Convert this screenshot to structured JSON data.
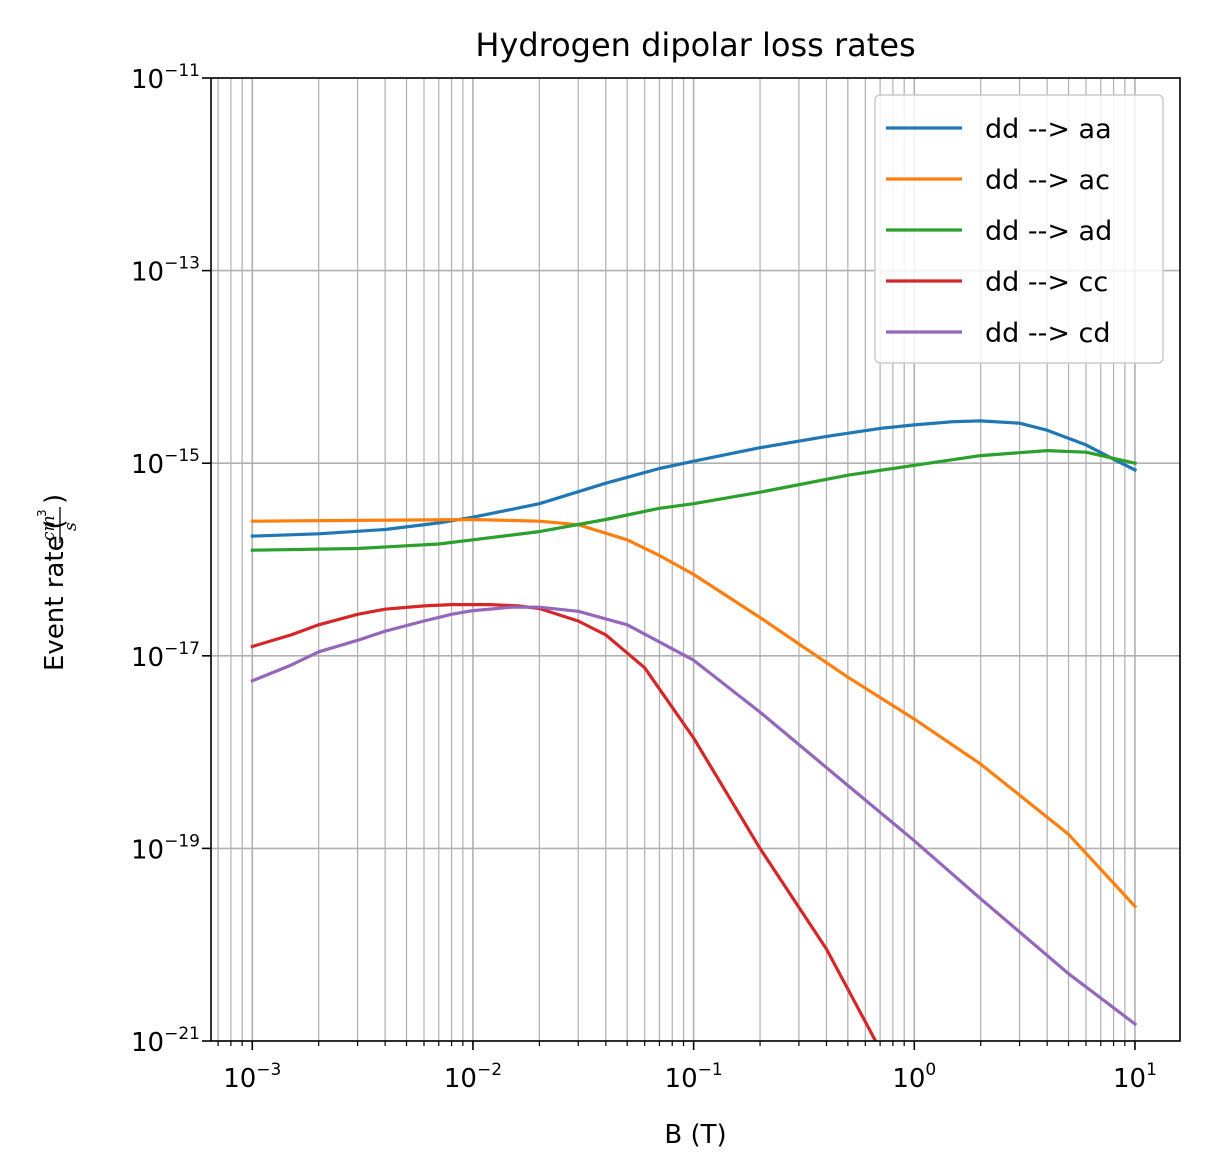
{
  "chart_data": {
    "type": "line",
    "title": "Hydrogen dipolar loss rates",
    "xlabel": "B (T)",
    "ylabel": "Event rate",
    "ylabel_unit_num": "cm",
    "ylabel_unit_exp": "3",
    "ylabel_unit_den": "s",
    "x_scale": "log",
    "y_scale": "log",
    "xlim": [
      0.00065,
      16
    ],
    "ylim": [
      1e-21,
      1e-11
    ],
    "x_ticks": [
      {
        "value": 0.001,
        "base": "10",
        "exp": "−3"
      },
      {
        "value": 0.01,
        "base": "10",
        "exp": "−2"
      },
      {
        "value": 0.1,
        "base": "10",
        "exp": "−1"
      },
      {
        "value": 1,
        "base": "10",
        "exp": "0"
      },
      {
        "value": 10,
        "base": "10",
        "exp": "1"
      }
    ],
    "y_ticks": [
      {
        "value": 1e-21,
        "base": "10",
        "exp": "−21"
      },
      {
        "value": 1e-19,
        "base": "10",
        "exp": "−19"
      },
      {
        "value": 1e-17,
        "base": "10",
        "exp": "−17"
      },
      {
        "value": 1e-15,
        "base": "10",
        "exp": "−15"
      },
      {
        "value": 1e-13,
        "base": "10",
        "exp": "−13"
      },
      {
        "value": 1e-11,
        "base": "10",
        "exp": "−11"
      }
    ],
    "grid": "both major and minor",
    "legend_position": "top-right",
    "series": [
      {
        "name": "dd --> aa",
        "color": "#1f77b4",
        "x": [
          0.001,
          0.002,
          0.004,
          0.007,
          0.01,
          0.02,
          0.04,
          0.07,
          0.1,
          0.2,
          0.4,
          0.7,
          1,
          1.5,
          2,
          3,
          4,
          6,
          8,
          10
        ],
        "y": [
          1.75e-16,
          1.85e-16,
          2.05e-16,
          2.4e-16,
          2.75e-16,
          3.8e-16,
          6.2e-16,
          8.8e-16,
          1.05e-15,
          1.45e-15,
          1.9e-15,
          2.3e-15,
          2.5e-15,
          2.7e-15,
          2.75e-15,
          2.6e-15,
          2.2e-15,
          1.55e-15,
          1.1e-15,
          8.5e-16
        ]
      },
      {
        "name": "dd --> ac",
        "color": "#ff7f0e",
        "x": [
          0.001,
          0.003,
          0.01,
          0.02,
          0.03,
          0.05,
          0.07,
          0.1,
          0.2,
          0.5,
          1,
          2,
          5,
          10
        ],
        "y": [
          2.5e-16,
          2.55e-16,
          2.6e-16,
          2.5e-16,
          2.3e-16,
          1.6e-16,
          1.1e-16,
          7e-17,
          2.5e-17,
          6e-18,
          2.2e-18,
          7.5e-19,
          1.4e-19,
          2.5e-20
        ]
      },
      {
        "name": "dd --> ad",
        "color": "#2ca02c",
        "x": [
          0.001,
          0.003,
          0.007,
          0.01,
          0.02,
          0.04,
          0.07,
          0.1,
          0.2,
          0.5,
          1,
          2,
          4,
          6,
          10
        ],
        "y": [
          1.25e-16,
          1.3e-16,
          1.45e-16,
          1.6e-16,
          1.95e-16,
          2.6e-16,
          3.4e-16,
          3.8e-16,
          5e-16,
          7.5e-16,
          9.5e-16,
          1.2e-15,
          1.35e-15,
          1.3e-15,
          1e-15
        ]
      },
      {
        "name": "dd --> cc",
        "color": "#d62728",
        "x": [
          0.001,
          0.0015,
          0.002,
          0.003,
          0.004,
          0.006,
          0.008,
          0.012,
          0.016,
          0.02,
          0.03,
          0.04,
          0.06,
          0.1,
          0.2,
          0.4,
          0.6676
        ],
        "y": [
          1.25e-17,
          1.65e-17,
          2.1e-17,
          2.7e-17,
          3.05e-17,
          3.3e-17,
          3.4e-17,
          3.4e-17,
          3.3e-17,
          3.1e-17,
          2.3e-17,
          1.65e-17,
          7.5e-18,
          1.4e-18,
          1e-19,
          9e-21,
          1e-21
        ]
      },
      {
        "name": "dd --> cd",
        "color": "#9467bd",
        "x": [
          0.001,
          0.0015,
          0.002,
          0.003,
          0.004,
          0.006,
          0.008,
          0.01,
          0.015,
          0.02,
          0.03,
          0.05,
          0.1,
          0.2,
          0.5,
          1,
          2,
          5,
          10
        ],
        "y": [
          5.5e-18,
          8e-18,
          1.1e-17,
          1.45e-17,
          1.8e-17,
          2.3e-17,
          2.7e-17,
          2.95e-17,
          3.2e-17,
          3.2e-17,
          2.9e-17,
          2.1e-17,
          9e-18,
          2.6e-18,
          4.5e-19,
          1.2e-19,
          3e-20,
          5e-21,
          1.5e-21
        ]
      }
    ]
  }
}
